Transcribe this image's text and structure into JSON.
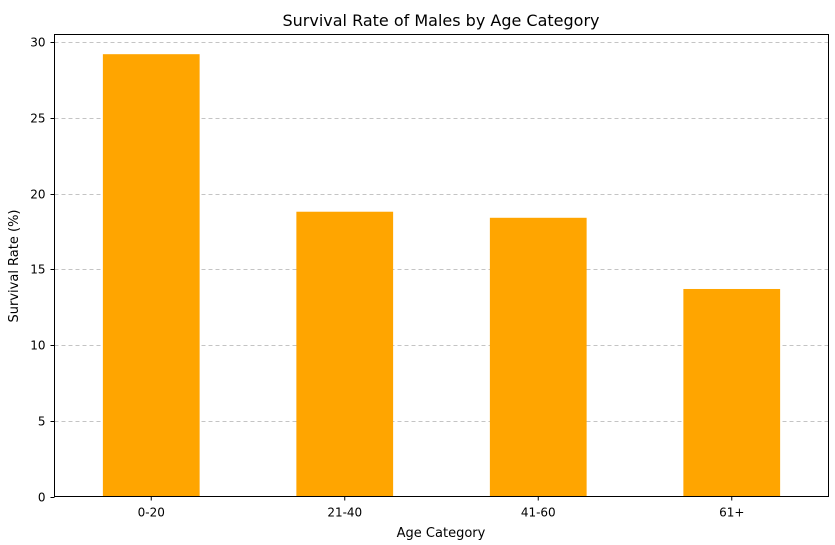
{
  "chart_data": {
    "type": "bar",
    "title": "Survival Rate of Males by Age Category",
    "xlabel": "Age Category",
    "ylabel": "Survival Rate (%)",
    "categories": [
      "0-20",
      "21-40",
      "41-60",
      "61+"
    ],
    "values": [
      29.2,
      18.8,
      18.4,
      13.7
    ],
    "ylim": [
      0,
      30.5
    ],
    "yticks": [
      0,
      5,
      10,
      15,
      20,
      25,
      30
    ],
    "grid": "y-dashed",
    "legend": "none",
    "bar_color": "#ffa500",
    "grid_color": "#c4c4c4",
    "axis_color": "#000000"
  }
}
